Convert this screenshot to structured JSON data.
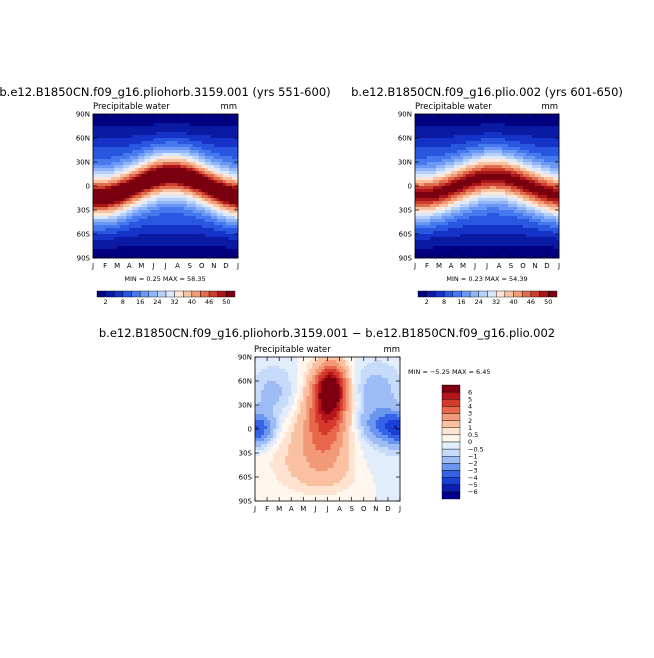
{
  "figure": {
    "colors": {
      "abs_scale": [
        "#000080",
        "#0a1aa3",
        "#1633c8",
        "#2957e0",
        "#4678ee",
        "#6a98f4",
        "#90b5f8",
        "#b7d0fa",
        "#dce8fb",
        "#fde7d9",
        "#f8c2a2",
        "#f09a76",
        "#e26c4e",
        "#cc3f2e",
        "#a8161a",
        "#7a0010"
      ],
      "diff_scale": [
        "#00008a",
        "#0b1fb0",
        "#1a3fd4",
        "#3563e8",
        "#6b96f0",
        "#9dbcf6",
        "#c6dafa",
        "#e2edfc",
        "#fff6ee",
        "#fde3d0",
        "#f9c1a1",
        "#f29a78",
        "#e8674c",
        "#d43a2c",
        "#b5141a",
        "#7e0010"
      ]
    }
  },
  "chart_data": [
    {
      "type": "heatmap",
      "title": "b.e12.B1850CN.f09_g16.pliohorb.3159.001 (yrs 551-600)",
      "variable": "Precipitable water",
      "units": "mm",
      "x_ticks": [
        "J",
        "F",
        "M",
        "A",
        "M",
        "J",
        "J",
        "A",
        "S",
        "O",
        "N",
        "D",
        "J"
      ],
      "y_ticks": [
        "90N",
        "60N",
        "30N",
        "0",
        "30S",
        "60S",
        "90S"
      ],
      "stats": "MIN =    0.25  MAX =   58.35",
      "min": 0.25,
      "max": 58.35,
      "colorbar_ticks": [
        "2",
        "8",
        "16",
        "24",
        "32",
        "40",
        "46",
        "50"
      ],
      "field_model": {
        "peak": 58,
        "itcz_lat_amplitude_deg": 14,
        "itcz_peak_month_index": 6.5,
        "width_deg": 28
      }
    },
    {
      "type": "heatmap",
      "title": "b.e12.B1850CN.f09_g16.plio.002 (yrs 601-650)",
      "variable": "Precipitable water",
      "units": "mm",
      "x_ticks": [
        "J",
        "F",
        "M",
        "A",
        "M",
        "J",
        "J",
        "A",
        "S",
        "O",
        "N",
        "D",
        "J"
      ],
      "y_ticks": [
        "90N",
        "60N",
        "30N",
        "0",
        "30S",
        "60S",
        "90S"
      ],
      "stats": "MIN =    0.23  MAX =   54.39",
      "min": 0.23,
      "max": 54.39,
      "colorbar_ticks": [
        "2",
        "8",
        "16",
        "24",
        "32",
        "40",
        "46",
        "50"
      ],
      "field_model": {
        "peak": 54,
        "itcz_lat_amplitude_deg": 12,
        "itcz_peak_month_index": 6.5,
        "width_deg": 28
      }
    },
    {
      "type": "heatmap",
      "title": "b.e12.B1850CN.f09_g16.pliohorb.3159.001  −  b.e12.B1850CN.f09_g16.plio.002",
      "variable": "Precipitable water",
      "units": "mm",
      "x_ticks": [
        "J",
        "F",
        "M",
        "A",
        "M",
        "J",
        "J",
        "A",
        "S",
        "O",
        "N",
        "D",
        "J"
      ],
      "y_ticks": [
        "90N",
        "60N",
        "30N",
        "0",
        "30S",
        "60S",
        "90S"
      ],
      "stats": "MIN =    −5.25  MAX =    6.45",
      "min": -5.25,
      "max": 6.45,
      "colorbar_ticks": [
        "6",
        "5",
        "4",
        "3",
        "2",
        "1",
        "0.5",
        "0",
        "−0.5",
        "−1",
        "−2",
        "−3",
        "−4",
        "−5",
        "−6"
      ]
    }
  ]
}
